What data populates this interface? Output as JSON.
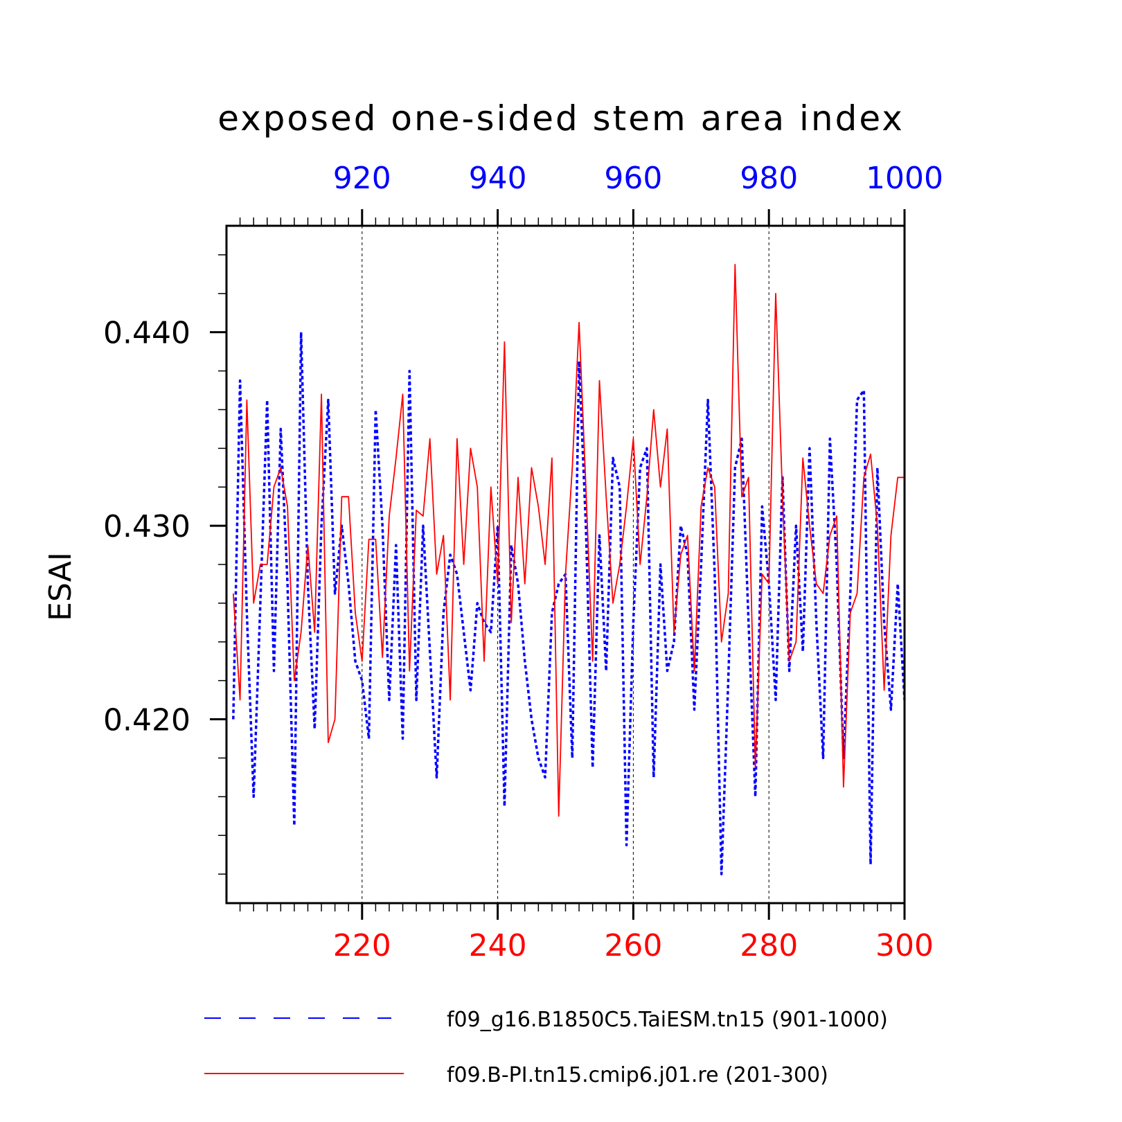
{
  "chart_data": {
    "type": "line",
    "title": "exposed one-sided stem area index",
    "ylabel": "ESAI",
    "ylim": [
      0.4105,
      0.4455
    ],
    "yticks": [
      0.42,
      0.43,
      0.44
    ],
    "ytick_labels": [
      "0.420",
      "0.430",
      "0.440"
    ],
    "ytick_minor_step": 0.002,
    "x_bottom": {
      "range": [
        201,
        300
      ],
      "ticks": [
        220,
        240,
        260,
        280,
        300
      ],
      "tick_labels": [
        "220",
        "240",
        "260",
        "280",
        "300"
      ],
      "color": "#ff0000"
    },
    "x_top": {
      "range": [
        901,
        1000
      ],
      "ticks": [
        920,
        940,
        960,
        980,
        1000
      ],
      "tick_labels": [
        "920",
        "940",
        "960",
        "980",
        "1000"
      ],
      "color": "#0000ff"
    },
    "grid": "vertical dashed at major ticks",
    "legend_position": "bottom",
    "series": [
      {
        "name": "f09_g16.B1850C5.TaiESM.tn15 (901-1000)",
        "axis": "top",
        "color": "#0000ff",
        "style": "dashed",
        "x_start": 901,
        "values": [
          0.42,
          0.4375,
          0.4255,
          0.416,
          0.426,
          0.4365,
          0.4225,
          0.435,
          0.427,
          0.4145,
          0.44,
          0.427,
          0.4195,
          0.43,
          0.4365,
          0.4265,
          0.43,
          0.427,
          0.423,
          0.422,
          0.419,
          0.436,
          0.43,
          0.421,
          0.429,
          0.419,
          0.438,
          0.421,
          0.43,
          0.4235,
          0.417,
          0.4255,
          0.4285,
          0.4275,
          0.4245,
          0.4215,
          0.426,
          0.425,
          0.4245,
          0.43,
          0.4155,
          0.429,
          0.427,
          0.423,
          0.42,
          0.418,
          0.417,
          0.4255,
          0.427,
          0.4275,
          0.418,
          0.4385,
          0.43,
          0.4175,
          0.4295,
          0.4225,
          0.4335,
          0.432,
          0.4135,
          0.425,
          0.433,
          0.434,
          0.417,
          0.428,
          0.4225,
          0.424,
          0.43,
          0.4285,
          0.4205,
          0.428,
          0.4365,
          0.4275,
          0.412,
          0.422,
          0.433,
          0.4345,
          0.425,
          0.416,
          0.431,
          0.427,
          0.421,
          0.4325,
          0.4225,
          0.43,
          0.4235,
          0.434,
          0.425,
          0.418,
          0.4345,
          0.428,
          0.418,
          0.4265,
          0.4365,
          0.437,
          0.4125,
          0.433,
          0.425,
          0.4205,
          0.427,
          0.421
        ]
      },
      {
        "name": "f09.B-PI.tn15.cmip6.j01.re (201-300)",
        "axis": "bottom",
        "color": "#ff0000",
        "style": "solid",
        "x_start": 201,
        "values": [
          0.4265,
          0.421,
          0.4365,
          0.426,
          0.428,
          0.428,
          0.432,
          0.433,
          0.431,
          0.422,
          0.4245,
          0.429,
          0.4245,
          0.4368,
          0.4188,
          0.42,
          0.4315,
          0.4315,
          0.4255,
          0.423,
          0.4293,
          0.4293,
          0.4232,
          0.4305,
          0.4335,
          0.4368,
          0.4225,
          0.4308,
          0.4305,
          0.4345,
          0.4275,
          0.4295,
          0.421,
          0.4345,
          0.428,
          0.434,
          0.432,
          0.423,
          0.432,
          0.427,
          0.4395,
          0.425,
          0.4325,
          0.427,
          0.433,
          0.431,
          0.428,
          0.4335,
          0.415,
          0.4275,
          0.433,
          0.4405,
          0.432,
          0.423,
          0.4375,
          0.4315,
          0.426,
          0.428,
          0.431,
          0.4345,
          0.428,
          0.4315,
          0.436,
          0.432,
          0.435,
          0.4245,
          0.4285,
          0.4295,
          0.4225,
          0.431,
          0.433,
          0.432,
          0.424,
          0.4265,
          0.4435,
          0.4315,
          0.4325,
          0.4175,
          0.4275,
          0.427,
          0.442,
          0.4315,
          0.423,
          0.424,
          0.4335,
          0.43,
          0.427,
          0.4265,
          0.4295,
          0.4305,
          0.4165,
          0.4255,
          0.4265,
          0.4325,
          0.4337,
          0.43,
          0.4215,
          0.4295,
          0.4325,
          0.4325
        ]
      }
    ]
  }
}
